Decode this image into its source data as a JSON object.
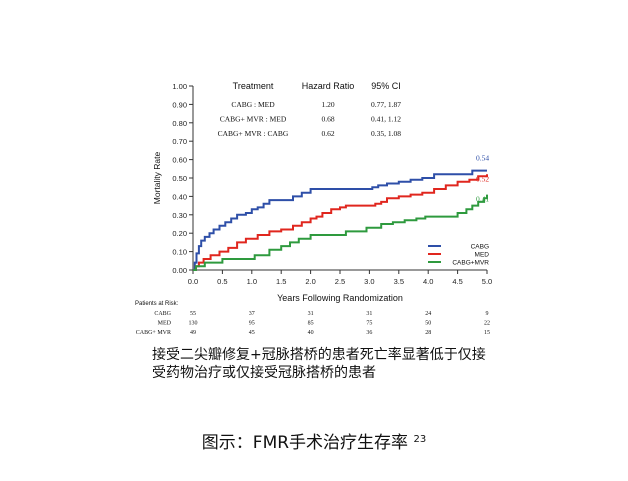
{
  "chart_data": {
    "type": "line",
    "xlabel": "Years Following Randomization",
    "ylabel": "Mortality Rate",
    "xlim": [
      0,
      5
    ],
    "ylim": [
      0,
      1
    ],
    "x_ticks": [
      "0.0",
      "0.5",
      "1.0",
      "1.5",
      "2.0",
      "2.5",
      "3.0",
      "3.5",
      "4.0",
      "4.5",
      "5.0"
    ],
    "y_ticks": [
      "0.00",
      "0.10",
      "0.20",
      "0.30",
      "0.40",
      "0.50",
      "0.60",
      "0.70",
      "0.80",
      "0.90",
      "1.00"
    ],
    "series": [
      {
        "name": "CABG",
        "color": "#2e4fa8",
        "end_label": "0.54",
        "x": [
          0,
          0.03,
          0.06,
          0.1,
          0.14,
          0.2,
          0.28,
          0.35,
          0.45,
          0.55,
          0.65,
          0.75,
          0.9,
          1.0,
          1.1,
          1.2,
          1.3,
          1.5,
          1.7,
          1.85,
          2.0,
          2.5,
          2.9,
          3.05,
          3.15,
          3.3,
          3.5,
          3.7,
          3.9,
          4.1,
          4.4,
          4.75,
          4.9,
          5.0
        ],
        "y": [
          0,
          0.04,
          0.09,
          0.13,
          0.16,
          0.18,
          0.2,
          0.22,
          0.24,
          0.26,
          0.28,
          0.3,
          0.31,
          0.33,
          0.34,
          0.36,
          0.38,
          0.38,
          0.4,
          0.42,
          0.44,
          0.44,
          0.44,
          0.45,
          0.46,
          0.47,
          0.48,
          0.49,
          0.5,
          0.52,
          0.52,
          0.54,
          0.54,
          0.54
        ]
      },
      {
        "name": "MED",
        "color": "#e0261e",
        "end_label": "0.52",
        "x": [
          0,
          0.05,
          0.1,
          0.18,
          0.3,
          0.45,
          0.6,
          0.75,
          0.9,
          1.1,
          1.3,
          1.5,
          1.7,
          1.85,
          2.0,
          2.1,
          2.2,
          2.35,
          2.5,
          2.6,
          2.75,
          2.9,
          3.1,
          3.2,
          3.3,
          3.5,
          3.7,
          3.9,
          4.1,
          4.3,
          4.5,
          4.7,
          4.85,
          5.0
        ],
        "y": [
          0,
          0.02,
          0.04,
          0.06,
          0.08,
          0.1,
          0.12,
          0.15,
          0.17,
          0.19,
          0.21,
          0.22,
          0.24,
          0.26,
          0.28,
          0.29,
          0.31,
          0.33,
          0.34,
          0.35,
          0.35,
          0.35,
          0.36,
          0.37,
          0.39,
          0.4,
          0.41,
          0.42,
          0.44,
          0.46,
          0.48,
          0.49,
          0.51,
          0.52
        ]
      },
      {
        "name": "CABG+MVR",
        "color": "#2e9a3e",
        "end_label": "0.41",
        "x": [
          0,
          0.05,
          0.1,
          0.2,
          0.35,
          0.5,
          0.8,
          1.05,
          1.3,
          1.5,
          1.65,
          1.8,
          2.0,
          2.5,
          2.6,
          2.8,
          2.95,
          3.05,
          3.2,
          3.4,
          3.6,
          3.8,
          3.95,
          4.2,
          4.5,
          4.65,
          4.75,
          4.85,
          4.95,
          5.0
        ],
        "y": [
          0,
          0.02,
          0.02,
          0.04,
          0.04,
          0.06,
          0.06,
          0.08,
          0.11,
          0.13,
          0.15,
          0.17,
          0.19,
          0.19,
          0.21,
          0.21,
          0.23,
          0.23,
          0.25,
          0.26,
          0.27,
          0.28,
          0.29,
          0.29,
          0.31,
          0.33,
          0.35,
          0.37,
          0.39,
          0.41
        ]
      }
    ],
    "legend_position": "bottom-right",
    "hazard_table": {
      "headers": [
        "Treatment",
        "Hazard Ratio",
        "95% CI"
      ],
      "rows": [
        [
          "CABG : MED",
          "1.20",
          "0.77, 1.87"
        ],
        [
          "CABG+ MVR : MED",
          "0.68",
          "0.41, 1.12"
        ],
        [
          "CABG+ MVR : CABG",
          "0.62",
          "0.35, 1.08"
        ]
      ]
    },
    "patients_at_risk": {
      "title": "Patients at Risk:",
      "rows": [
        {
          "label": "CABG",
          "values": [
            "55",
            "37",
            "31",
            "31",
            "24",
            "9"
          ]
        },
        {
          "label": "MED",
          "values": [
            "130",
            "95",
            "85",
            "75",
            "50",
            "22"
          ]
        },
        {
          "label": "CABG+ MVR",
          "values": [
            "49",
            "45",
            "40",
            "36",
            "28",
            "15"
          ]
        }
      ],
      "years": [
        0,
        1,
        2,
        3,
        4,
        5
      ]
    }
  },
  "caption": {
    "line1": "接受二尖瓣修复+冠脉搭桥的患者死亡率显著低于仅接",
    "line2": "受药物治疗或仅接受冠脉搭桥的患者",
    "figure": "图示：FMR手术治疗生存率",
    "ref": "23"
  }
}
